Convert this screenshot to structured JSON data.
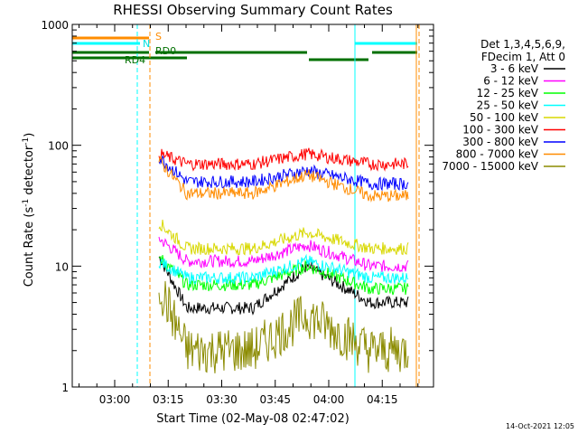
{
  "chart_data": {
    "type": "line",
    "title": "RHESSI Observing Summary Count Rates",
    "xlabel": "Start Time (02-May-08 02:47:02)",
    "ylabel_main": "Count Rate (s",
    "ylabel_sup1": "-1",
    "ylabel_mid": " detector",
    "ylabel_sup2": "-1",
    "ylabel_end": ")",
    "yscale": "log",
    "ylim": [
      1,
      1000
    ],
    "xlim": [
      "02:47",
      "04:26"
    ],
    "y_ticks": [
      "1",
      "10",
      "100",
      "1000"
    ],
    "x_ticks": [
      "03:00",
      "03:15",
      "03:30",
      "03:45",
      "04:00",
      "04:15"
    ],
    "x_tick_minutes": [
      0,
      15,
      30,
      45,
      60,
      75
    ],
    "legend_header": [
      "Det 1,3,4,5,6,9,",
      "FDecim 1, Att 0"
    ],
    "legend_position": "right",
    "timestamp": "14-Oct-2021 12:05",
    "series": [
      {
        "name": "3 - 6 keV",
        "color": "#000000",
        "levels": [
          12,
          4.5,
          4.5,
          10,
          5
        ]
      },
      {
        "name": "6 - 12 keV",
        "color": "#ff00ff",
        "levels": [
          17,
          11,
          11,
          15,
          10
        ]
      },
      {
        "name": "12 - 25 keV",
        "color": "#00ff00",
        "levels": [
          12,
          7,
          7,
          10,
          6.5
        ]
      },
      {
        "name": "25 - 50 keV",
        "color": "#00ffff",
        "levels": [
          11,
          8,
          8,
          11,
          8
        ]
      },
      {
        "name": "50 - 100 keV",
        "color": "#d8d800",
        "levels": [
          23,
          14,
          14,
          19,
          14
        ]
      },
      {
        "name": "100 - 300 keV",
        "color": "#ff0000",
        "levels": [
          85,
          70,
          70,
          85,
          70
        ]
      },
      {
        "name": "300 - 800 keV",
        "color": "#0000ff",
        "levels": [
          80,
          50,
          50,
          62,
          48
        ]
      },
      {
        "name": "800 - 7000 keV",
        "color": "#ff8c00",
        "levels": [
          75,
          40,
          40,
          57,
          38
        ]
      },
      {
        "name": "7000 - 15000 keV",
        "color": "#8b8b00",
        "levels": [
          7,
          2,
          2,
          4,
          2
        ]
      }
    ],
    "annotations": {
      "saa_label": "S",
      "night_label": "N",
      "rd0_label": "RD0",
      "rd4_label": "RD4"
    }
  }
}
